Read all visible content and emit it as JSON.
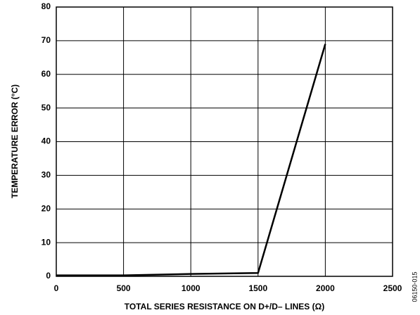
{
  "chart_data": {
    "type": "line",
    "x_label": "TOTAL SERIES RESISTANCE ON D+/D– LINES (Ω)",
    "y_label": "TEMPERATURE ERROR (°C)",
    "figure_id": "06150-015",
    "x": [
      0,
      500,
      1000,
      1500,
      2000
    ],
    "series": [
      {
        "color": "#000000",
        "values": [
          0.3,
          0.3,
          0.7,
          1.0,
          69
        ]
      }
    ],
    "xlim": [
      0,
      2500
    ],
    "xticks": [
      0,
      500,
      1000,
      1500,
      2000,
      2500
    ],
    "ylim": [
      0,
      80
    ],
    "yticks": [
      0,
      10,
      20,
      30,
      40,
      50,
      60,
      70,
      80
    ],
    "grid": true
  }
}
